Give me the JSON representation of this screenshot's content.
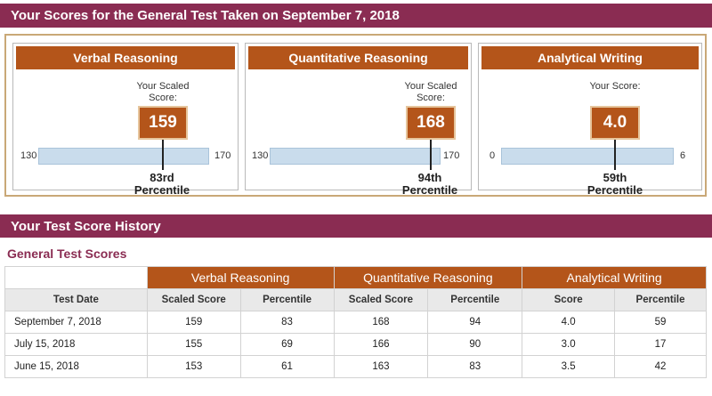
{
  "header": {
    "title": "Your Scores for the General Test Taken on September 7, 2018"
  },
  "cards": [
    {
      "title": "Verbal Reasoning",
      "scaled_label": "Your Scaled Score:",
      "score": "159",
      "min": "130",
      "max": "170",
      "percentile_rank": "83rd",
      "percentile_word": "Percentile"
    },
    {
      "title": "Quantitative Reasoning",
      "scaled_label": "Your Scaled Score:",
      "score": "168",
      "min": "130",
      "max": "170",
      "percentile_rank": "94th",
      "percentile_word": "Percentile"
    },
    {
      "title": "Analytical Writing",
      "scaled_label": "Your Score:",
      "score": "4.0",
      "min": "0",
      "max": "6",
      "percentile_rank": "59th",
      "percentile_word": "Percentile"
    }
  ],
  "history": {
    "title": "Your Test Score History",
    "section_title": "General Test Scores",
    "groups": [
      "Verbal Reasoning",
      "Quantitative Reasoning",
      "Analytical Writing"
    ],
    "columns": [
      "Test Date",
      "Scaled Score",
      "Percentile",
      "Scaled Score",
      "Percentile",
      "Score",
      "Percentile"
    ],
    "rows": [
      [
        "September 7, 2018",
        "159",
        "83",
        "168",
        "94",
        "4.0",
        "59"
      ],
      [
        "July 15, 2018",
        "155",
        "69",
        "166",
        "90",
        "3.0",
        "17"
      ],
      [
        "June 15, 2018",
        "153",
        "61",
        "163",
        "83",
        "3.5",
        "42"
      ]
    ]
  },
  "colors": {
    "banner": "#8a2c52",
    "accent": "#b4551a",
    "scale_bar": "#c9dcec"
  }
}
